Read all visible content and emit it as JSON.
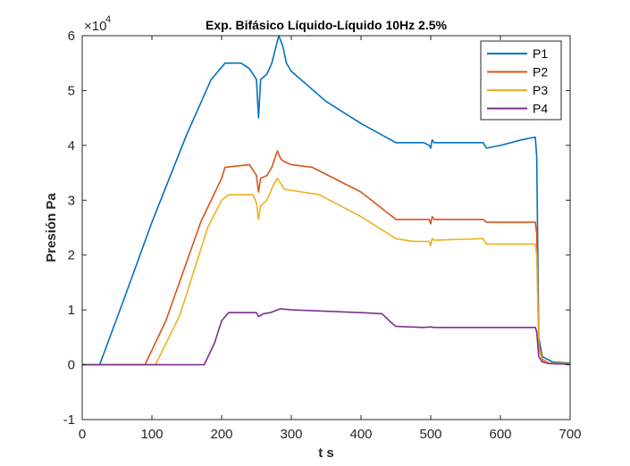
{
  "chart_data": {
    "type": "line",
    "title": "Exp. Bifásico Líquido-Líquido 10Hz 2.5%",
    "xlabel": "t s",
    "ylabel": "Presión Pa",
    "y_exponent_label": "×10",
    "y_exponent_power": "4",
    "y_scale_factor": 10000,
    "xlim": [
      0,
      700
    ],
    "ylim": [
      -10000,
      60000
    ],
    "x_ticks": [
      0,
      100,
      200,
      300,
      400,
      500,
      600,
      700
    ],
    "x_tick_labels": [
      "0",
      "100",
      "200",
      "300",
      "400",
      "500",
      "600",
      "700"
    ],
    "y_ticks": [
      -10000,
      0,
      10000,
      20000,
      30000,
      40000,
      50000,
      60000
    ],
    "y_tick_labels": [
      "-1",
      "0",
      "1",
      "2",
      "3",
      "4",
      "5",
      "6"
    ],
    "grid": false,
    "legend_position": "top-right",
    "series": [
      {
        "name": "P1",
        "color": "#0072BD",
        "points": [
          [
            0,
            0
          ],
          [
            25,
            0
          ],
          [
            60,
            12000
          ],
          [
            100,
            26000
          ],
          [
            150,
            42000
          ],
          [
            185,
            52000
          ],
          [
            205,
            55000
          ],
          [
            228,
            55000
          ],
          [
            240,
            54000
          ],
          [
            250,
            52000
          ],
          [
            253,
            45000
          ],
          [
            256,
            52000
          ],
          [
            265,
            53000
          ],
          [
            272,
            55000
          ],
          [
            278,
            58000
          ],
          [
            282,
            60000
          ],
          [
            288,
            58000
          ],
          [
            293,
            55000
          ],
          [
            300,
            53500
          ],
          [
            350,
            48000
          ],
          [
            400,
            44000
          ],
          [
            450,
            40500
          ],
          [
            490,
            40500
          ],
          [
            498,
            40000
          ],
          [
            500,
            39500
          ],
          [
            502,
            41000
          ],
          [
            505,
            40500
          ],
          [
            550,
            40500
          ],
          [
            575,
            40500
          ],
          [
            580,
            39500
          ],
          [
            600,
            40000
          ],
          [
            630,
            41000
          ],
          [
            650,
            41500
          ],
          [
            652,
            38000
          ],
          [
            655,
            5000
          ],
          [
            660,
            1500
          ],
          [
            675,
            500
          ],
          [
            700,
            300
          ]
        ]
      },
      {
        "name": "P2",
        "color": "#D95319",
        "points": [
          [
            0,
            0
          ],
          [
            90,
            0
          ],
          [
            120,
            8000
          ],
          [
            170,
            26000
          ],
          [
            200,
            34000
          ],
          [
            205,
            36000
          ],
          [
            240,
            36500
          ],
          [
            250,
            34500
          ],
          [
            253,
            31500
          ],
          [
            256,
            34000
          ],
          [
            265,
            34500
          ],
          [
            272,
            36000
          ],
          [
            280,
            39000
          ],
          [
            285,
            37500
          ],
          [
            290,
            37000
          ],
          [
            300,
            36500
          ],
          [
            330,
            36000
          ],
          [
            400,
            31500
          ],
          [
            450,
            26500
          ],
          [
            475,
            26500
          ],
          [
            498,
            26500
          ],
          [
            500,
            25700
          ],
          [
            502,
            27000
          ],
          [
            505,
            26500
          ],
          [
            575,
            26500
          ],
          [
            580,
            26000
          ],
          [
            650,
            26000
          ],
          [
            652,
            24000
          ],
          [
            655,
            4000
          ],
          [
            660,
            1000
          ],
          [
            670,
            300
          ],
          [
            700,
            200
          ]
        ]
      },
      {
        "name": "P3",
        "color": "#EDB120",
        "points": [
          [
            0,
            0
          ],
          [
            105,
            0
          ],
          [
            140,
            9000
          ],
          [
            180,
            25000
          ],
          [
            200,
            30000
          ],
          [
            210,
            31000
          ],
          [
            245,
            31000
          ],
          [
            250,
            29500
          ],
          [
            253,
            26500
          ],
          [
            256,
            29000
          ],
          [
            265,
            30000
          ],
          [
            275,
            33000
          ],
          [
            280,
            34000
          ],
          [
            285,
            33000
          ],
          [
            290,
            32000
          ],
          [
            340,
            31000
          ],
          [
            400,
            27000
          ],
          [
            450,
            23000
          ],
          [
            475,
            22500
          ],
          [
            498,
            22500
          ],
          [
            500,
            21700
          ],
          [
            502,
            23000
          ],
          [
            505,
            22700
          ],
          [
            575,
            23000
          ],
          [
            580,
            22000
          ],
          [
            650,
            22000
          ],
          [
            652,
            20000
          ],
          [
            655,
            3000
          ],
          [
            660,
            800
          ],
          [
            670,
            300
          ],
          [
            700,
            200
          ]
        ]
      },
      {
        "name": "P4",
        "color": "#7E2F8E",
        "points": [
          [
            0,
            0
          ],
          [
            175,
            0
          ],
          [
            190,
            4000
          ],
          [
            200,
            8000
          ],
          [
            210,
            9500
          ],
          [
            240,
            9500
          ],
          [
            250,
            9500
          ],
          [
            253,
            8800
          ],
          [
            256,
            9000
          ],
          [
            260,
            9300
          ],
          [
            270,
            9500
          ],
          [
            280,
            10000
          ],
          [
            285,
            10200
          ],
          [
            300,
            10000
          ],
          [
            400,
            9500
          ],
          [
            430,
            9300
          ],
          [
            445,
            7500
          ],
          [
            450,
            7000
          ],
          [
            490,
            6800
          ],
          [
            500,
            6900
          ],
          [
            505,
            6800
          ],
          [
            575,
            6800
          ],
          [
            650,
            6800
          ],
          [
            652,
            6000
          ],
          [
            655,
            1500
          ],
          [
            660,
            500
          ],
          [
            670,
            200
          ],
          [
            700,
            100
          ]
        ]
      }
    ]
  }
}
